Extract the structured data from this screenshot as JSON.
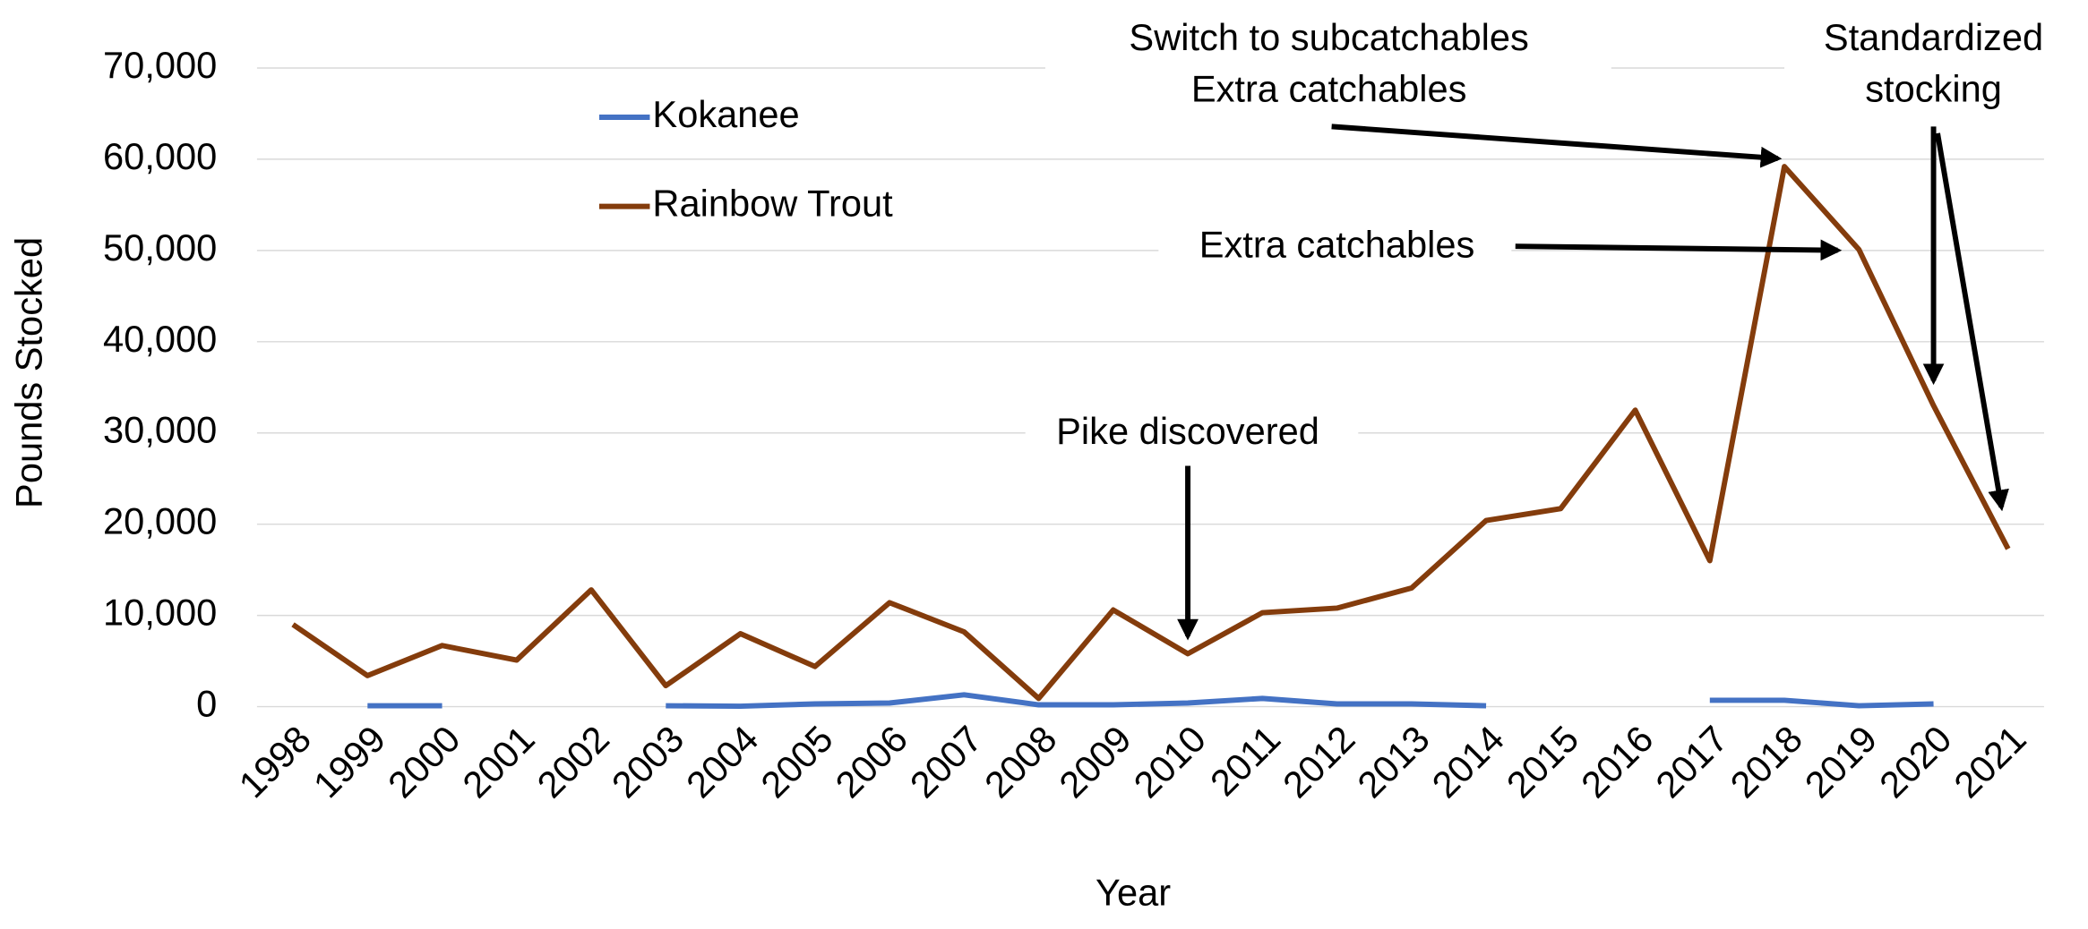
{
  "chart_data": {
    "type": "line",
    "x_label": "Year",
    "y_label": "Pounds Stocked",
    "categories": [
      "1998",
      "1999",
      "2000",
      "2001",
      "2002",
      "2003",
      "2004",
      "2005",
      "2006",
      "2007",
      "2008",
      "2009",
      "2010",
      "2011",
      "2012",
      "2013",
      "2014",
      "2015",
      "2016",
      "2017",
      "2018",
      "2019",
      "2020",
      "2021"
    ],
    "series": [
      {
        "name": "Kokanee",
        "color": "#4472c4",
        "values": [
          null,
          100,
          100,
          null,
          null,
          100,
          50,
          300,
          400,
          1300,
          200,
          200,
          400,
          900,
          300,
          300,
          100,
          null,
          null,
          700,
          700,
          100,
          300,
          null
        ]
      },
      {
        "name": "Rainbow Trout",
        "color": "#843c0c",
        "values": [
          9000,
          3400,
          6700,
          5100,
          12800,
          2300,
          8000,
          4400,
          11400,
          8200,
          900,
          10600,
          5800,
          10300,
          10800,
          13000,
          20400,
          21700,
          32500,
          16000,
          59200,
          50100,
          33000,
          17300
        ]
      }
    ],
    "ylim": [
      0,
      70000
    ],
    "yticks": [
      0,
      {
        "value": 10000,
        "label": "10,000"
      },
      {
        "value": 20000,
        "label": "20,000"
      },
      {
        "value": 30000,
        "label": "30,000"
      },
      {
        "value": 40000,
        "label": "40,000"
      },
      {
        "value": 50000,
        "label": "50,000"
      },
      {
        "value": 60000,
        "label": "60,000"
      },
      {
        "value": 70000,
        "label": "70,000"
      }
    ],
    "grid": true,
    "legend": "top-left",
    "annotations": [
      {
        "lines": [
          "Switch to subcatchables",
          "Extra catchables"
        ]
      },
      {
        "lines": [
          "Extra catchables"
        ]
      },
      {
        "lines": [
          "Pike discovered"
        ]
      },
      {
        "lines": [
          "Standardized",
          "stocking"
        ]
      }
    ]
  }
}
